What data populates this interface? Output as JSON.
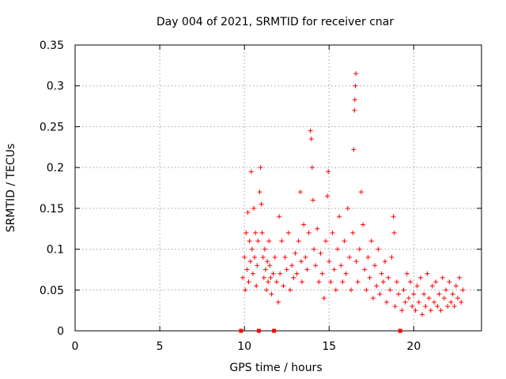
{
  "chart_data": {
    "type": "scatter",
    "title": "Day 004 of 2021, SRMTID for receiver cnar",
    "xlabel": "GPS time / hours",
    "ylabel": "SRMTID / TECUs",
    "xlim": [
      0,
      24
    ],
    "ylim": [
      0,
      0.35
    ],
    "xticks": [
      0,
      5,
      10,
      15,
      20
    ],
    "xtick_labels": [
      "0",
      "5",
      "10",
      "15",
      "20"
    ],
    "yticks": [
      0,
      0.05,
      0.1,
      0.15,
      0.2,
      0.25,
      0.3,
      0.35
    ],
    "ytick_labels": [
      "0",
      "0.05",
      "0.1",
      "0.15",
      "0.2",
      "0.25",
      "0.3",
      "0.35"
    ],
    "grid": true,
    "marker": "+",
    "color": "#ff0000",
    "zero_markers_x": [
      9.8,
      10.85,
      11.75,
      19.2
    ],
    "series": [
      {
        "name": "SRMTID",
        "points": [
          [
            9.9,
            0.065
          ],
          [
            10.0,
            0.09
          ],
          [
            10.05,
            0.05
          ],
          [
            10.1,
            0.12
          ],
          [
            10.15,
            0.075
          ],
          [
            10.2,
            0.145
          ],
          [
            10.25,
            0.06
          ],
          [
            10.3,
            0.11
          ],
          [
            10.35,
            0.085
          ],
          [
            10.4,
            0.195
          ],
          [
            10.45,
            0.1
          ],
          [
            10.5,
            0.07
          ],
          [
            10.55,
            0.15
          ],
          [
            10.6,
            0.09
          ],
          [
            10.65,
            0.12
          ],
          [
            10.7,
            0.055
          ],
          [
            10.75,
            0.08
          ],
          [
            10.8,
            0.11
          ],
          [
            10.9,
            0.17
          ],
          [
            10.95,
            0.2
          ],
          [
            11.0,
            0.155
          ],
          [
            11.05,
            0.12
          ],
          [
            11.1,
            0.09
          ],
          [
            11.15,
            0.065
          ],
          [
            11.2,
            0.1
          ],
          [
            11.25,
            0.075
          ],
          [
            11.3,
            0.05
          ],
          [
            11.35,
            0.085
          ],
          [
            11.4,
            0.06
          ],
          [
            11.45,
            0.11
          ],
          [
            11.5,
            0.08
          ],
          [
            11.55,
            0.065
          ],
          [
            11.6,
            0.045
          ],
          [
            11.7,
            0.07
          ],
          [
            11.8,
            0.09
          ],
          [
            11.9,
            0.06
          ],
          [
            12.0,
            0.035
          ],
          [
            12.05,
            0.14
          ],
          [
            12.1,
            0.07
          ],
          [
            12.2,
            0.11
          ],
          [
            12.3,
            0.055
          ],
          [
            12.4,
            0.09
          ],
          [
            12.5,
            0.075
          ],
          [
            12.6,
            0.12
          ],
          [
            12.7,
            0.05
          ],
          [
            12.8,
            0.08
          ],
          [
            12.9,
            0.065
          ],
          [
            13.0,
            0.095
          ],
          [
            13.1,
            0.07
          ],
          [
            13.2,
            0.11
          ],
          [
            13.3,
            0.17
          ],
          [
            13.35,
            0.085
          ],
          [
            13.4,
            0.06
          ],
          [
            13.5,
            0.13
          ],
          [
            13.6,
            0.09
          ],
          [
            13.7,
            0.075
          ],
          [
            13.8,
            0.12
          ],
          [
            13.9,
            0.245
          ],
          [
            13.95,
            0.235
          ],
          [
            14.0,
            0.2
          ],
          [
            14.05,
            0.16
          ],
          [
            14.1,
            0.1
          ],
          [
            14.2,
            0.08
          ],
          [
            14.3,
            0.125
          ],
          [
            14.4,
            0.06
          ],
          [
            14.5,
            0.095
          ],
          [
            14.6,
            0.07
          ],
          [
            14.7,
            0.04
          ],
          [
            14.8,
            0.11
          ],
          [
            14.9,
            0.165
          ],
          [
            14.95,
            0.195
          ],
          [
            15.0,
            0.085
          ],
          [
            15.1,
            0.06
          ],
          [
            15.2,
            0.12
          ],
          [
            15.3,
            0.075
          ],
          [
            15.4,
            0.05
          ],
          [
            15.5,
            0.1
          ],
          [
            15.6,
            0.14
          ],
          [
            15.7,
            0.08
          ],
          [
            15.8,
            0.06
          ],
          [
            15.9,
            0.11
          ],
          [
            16.0,
            0.07
          ],
          [
            16.1,
            0.15
          ],
          [
            16.2,
            0.09
          ],
          [
            16.3,
            0.05
          ],
          [
            16.4,
            0.12
          ],
          [
            16.45,
            0.222
          ],
          [
            16.5,
            0.27
          ],
          [
            16.52,
            0.283
          ],
          [
            16.55,
            0.3
          ],
          [
            16.58,
            0.315
          ],
          [
            16.6,
            0.085
          ],
          [
            16.7,
            0.06
          ],
          [
            16.8,
            0.1
          ],
          [
            16.9,
            0.17
          ],
          [
            17.0,
            0.13
          ],
          [
            17.1,
            0.075
          ],
          [
            17.2,
            0.05
          ],
          [
            17.3,
            0.09
          ],
          [
            17.4,
            0.065
          ],
          [
            17.5,
            0.11
          ],
          [
            17.6,
            0.04
          ],
          [
            17.7,
            0.08
          ],
          [
            17.8,
            0.055
          ],
          [
            17.9,
            0.1
          ],
          [
            18.0,
            0.045
          ],
          [
            18.1,
            0.07
          ],
          [
            18.2,
            0.06
          ],
          [
            18.3,
            0.085
          ],
          [
            18.4,
            0.035
          ],
          [
            18.5,
            0.065
          ],
          [
            18.6,
            0.05
          ],
          [
            18.7,
            0.09
          ],
          [
            18.8,
            0.14
          ],
          [
            18.85,
            0.12
          ],
          [
            18.9,
            0.03
          ],
          [
            19.0,
            0.06
          ],
          [
            19.1,
            0.045
          ],
          [
            19.3,
            0.025
          ],
          [
            19.4,
            0.05
          ],
          [
            19.5,
            0.035
          ],
          [
            19.6,
            0.07
          ],
          [
            19.7,
            0.04
          ],
          [
            19.8,
            0.06
          ],
          [
            19.9,
            0.03
          ],
          [
            20.0,
            0.045
          ],
          [
            20.1,
            0.025
          ],
          [
            20.2,
            0.055
          ],
          [
            20.3,
            0.035
          ],
          [
            20.4,
            0.065
          ],
          [
            20.5,
            0.02
          ],
          [
            20.6,
            0.045
          ],
          [
            20.7,
            0.03
          ],
          [
            20.8,
            0.07
          ],
          [
            20.9,
            0.04
          ],
          [
            21.0,
            0.025
          ],
          [
            21.1,
            0.055
          ],
          [
            21.2,
            0.035
          ],
          [
            21.3,
            0.06
          ],
          [
            21.4,
            0.03
          ],
          [
            21.5,
            0.045
          ],
          [
            21.6,
            0.025
          ],
          [
            21.7,
            0.065
          ],
          [
            21.8,
            0.04
          ],
          [
            21.9,
            0.05
          ],
          [
            22.0,
            0.03
          ],
          [
            22.1,
            0.06
          ],
          [
            22.2,
            0.035
          ],
          [
            22.3,
            0.045
          ],
          [
            22.4,
            0.03
          ],
          [
            22.5,
            0.055
          ],
          [
            22.6,
            0.04
          ],
          [
            22.7,
            0.065
          ],
          [
            22.8,
            0.035
          ],
          [
            22.9,
            0.05
          ]
        ]
      }
    ]
  }
}
